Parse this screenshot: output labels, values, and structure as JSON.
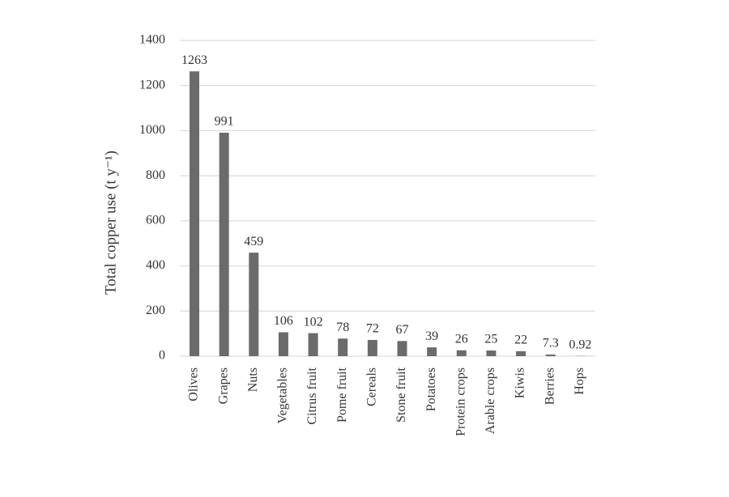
{
  "chart_data": {
    "type": "bar",
    "y_label": "Total copper use (t y⁻¹)",
    "categories": [
      "Olives",
      "Grapes",
      "Nuts",
      "Vegetables",
      "Citrus fruit",
      "Pome fruit",
      "Cereals",
      "Stone fruit",
      "Potatoes",
      "Protein crops",
      "Arable crops",
      "Kiwis",
      "Berries",
      "Hops"
    ],
    "values": [
      1263,
      991,
      459,
      106,
      102,
      78,
      72,
      67,
      39,
      26,
      25,
      22,
      7.3,
      0.92
    ],
    "color": "#6b6b6b",
    "ylim": [
      0,
      1400
    ],
    "yticks": [
      0,
      200,
      400,
      600,
      800,
      1000,
      1200,
      1400
    ],
    "grid": true
  }
}
